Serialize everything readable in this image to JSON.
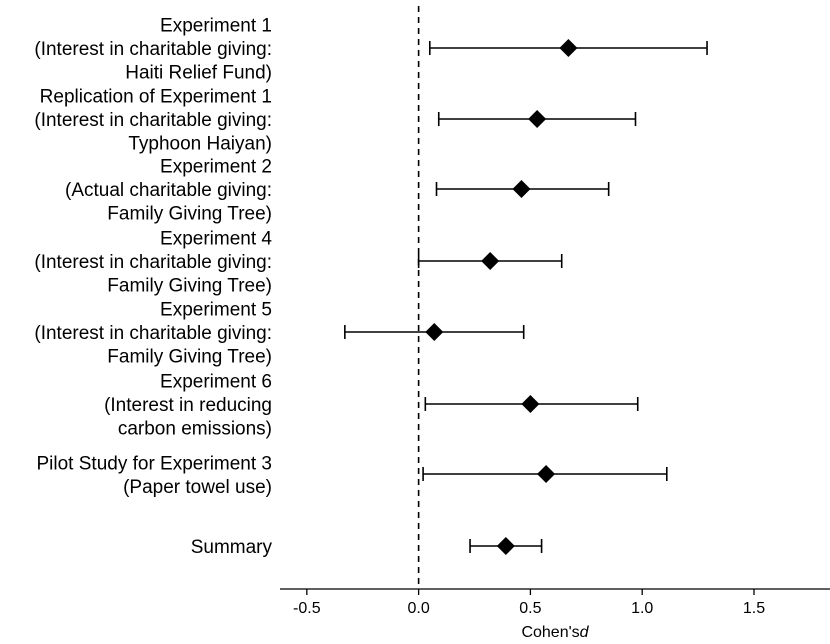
{
  "chart_data": {
    "type": "forest",
    "xlabel": "Cohen's",
    "xlabel_italic": "d",
    "xlim": [
      -0.62,
      1.84
    ],
    "x_ticks": [
      -0.5,
      0.0,
      0.5,
      1.0,
      1.5
    ],
    "x_tick_labels": [
      "-0.5",
      "0.0",
      "0.5",
      "1.0",
      "1.5"
    ],
    "reference_line": 0.0,
    "grid": false,
    "rows": [
      {
        "label_lines": [
          "Experiment 1",
          "(Interest in charitable giving:",
          "Haiti Relief Fund)"
        ],
        "d": 0.67,
        "ci_low": 0.05,
        "ci_high": 1.29
      },
      {
        "label_lines": [
          "Replication of Experiment 1",
          "(Interest in charitable giving:",
          "Typhoon Haiyan)"
        ],
        "d": 0.53,
        "ci_low": 0.09,
        "ci_high": 0.97
      },
      {
        "label_lines": [
          "Experiment 2",
          "(Actual charitable giving:",
          "Family Giving Tree)"
        ],
        "d": 0.46,
        "ci_low": 0.08,
        "ci_high": 0.85
      },
      {
        "label_lines": [
          "Experiment 4",
          "(Interest in charitable giving:",
          "Family Giving Tree)"
        ],
        "d": 0.32,
        "ci_low": 0.0,
        "ci_high": 0.64
      },
      {
        "label_lines": [
          "Experiment 5",
          "(Interest in charitable giving:",
          "Family Giving Tree)"
        ],
        "d": 0.07,
        "ci_low": -0.33,
        "ci_high": 0.47
      },
      {
        "label_lines": [
          "Experiment 6",
          "(Interest in reducing",
          "carbon emissions)"
        ],
        "d": 0.5,
        "ci_low": 0.03,
        "ci_high": 0.98
      },
      {
        "label_lines": [
          "Pilot Study for Experiment 3",
          "(Paper towel use)"
        ],
        "d": 0.57,
        "ci_low": 0.02,
        "ci_high": 1.11
      },
      {
        "label_lines": [
          "Summary"
        ],
        "d": 0.39,
        "ci_low": 0.23,
        "ci_high": 0.55
      }
    ]
  }
}
